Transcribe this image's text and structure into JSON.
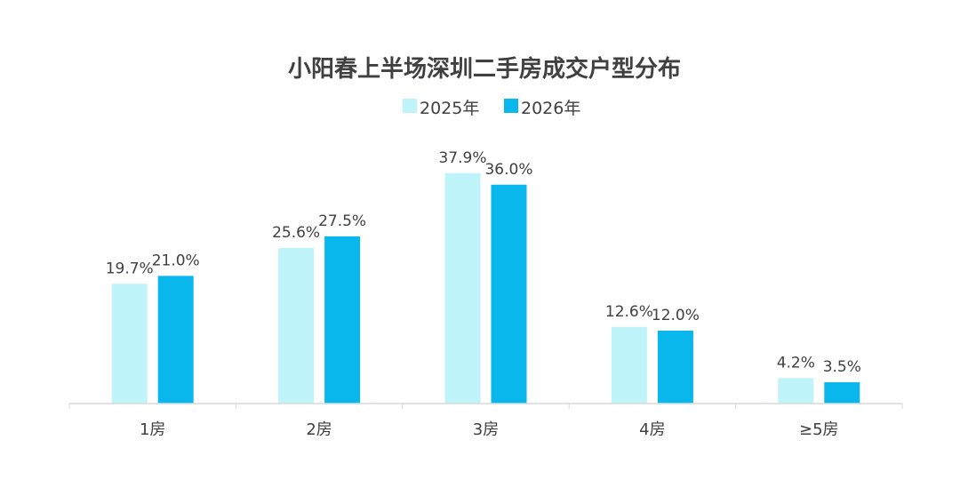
{
  "chart_data": {
    "type": "bar",
    "title": "小阳春上半场深圳二手房成交户型分布",
    "categories": [
      "1房",
      "2房",
      "3房",
      "4房",
      "≥5房"
    ],
    "series": [
      {
        "name": "2025年",
        "values": [
          19.7,
          25.6,
          37.9,
          12.6,
          4.2
        ],
        "labels": [
          "19.7%",
          "25.6%",
          "37.9%",
          "12.6%",
          "4.2%"
        ],
        "color": "#bff5fa"
      },
      {
        "name": "2026年",
        "values": [
          21.0,
          27.5,
          36.0,
          12.0,
          3.5
        ],
        "labels": [
          "21.0%",
          "27.5%",
          "36.0%",
          "12.0%",
          "3.5%"
        ],
        "color": "#0ab7ec"
      }
    ],
    "ylim": [
      0,
      40
    ],
    "grid": false,
    "legend_position": "top-center",
    "axis_color": "#d9d9d9"
  }
}
